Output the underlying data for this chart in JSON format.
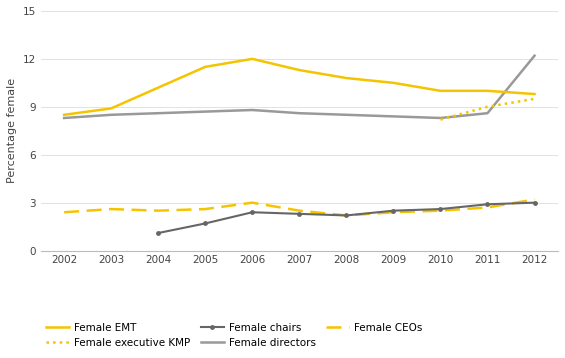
{
  "years": [
    2002,
    2003,
    2004,
    2005,
    2006,
    2007,
    2008,
    2009,
    2010,
    2011,
    2012
  ],
  "female_emt": [
    8.5,
    8.9,
    10.2,
    11.5,
    12.0,
    11.3,
    10.8,
    10.5,
    10.0,
    10.0,
    9.8
  ],
  "female_executive_kmp_years": [
    2010,
    2011,
    2012
  ],
  "female_executive_kmp": [
    8.2,
    9.0,
    9.5
  ],
  "female_chairs_years": [
    2004,
    2005,
    2006,
    2007,
    2008,
    2009,
    2010,
    2011,
    2012
  ],
  "female_chairs": [
    1.1,
    1.7,
    2.4,
    2.3,
    2.2,
    2.5,
    2.6,
    2.9,
    3.0
  ],
  "female_directors": [
    8.3,
    8.5,
    8.6,
    8.7,
    8.8,
    8.6,
    8.5,
    8.4,
    8.3,
    8.6,
    12.2
  ],
  "female_ceos": [
    2.4,
    2.6,
    2.5,
    2.6,
    3.0,
    2.5,
    2.2,
    2.4,
    2.5,
    2.7,
    3.2
  ],
  "color_yellow": "#F5C400",
  "color_chairs": "#666666",
  "color_directors": "#999999",
  "ylabel": "Percentage female",
  "ylim": [
    0,
    15
  ],
  "yticks": [
    0,
    3,
    6,
    9,
    12,
    15
  ],
  "background": "#ffffff",
  "legend_row1": [
    "Female EMT",
    "Female executive KMP",
    "Female chairs"
  ],
  "legend_row2": [
    "Female directors",
    "Female CEOs"
  ]
}
